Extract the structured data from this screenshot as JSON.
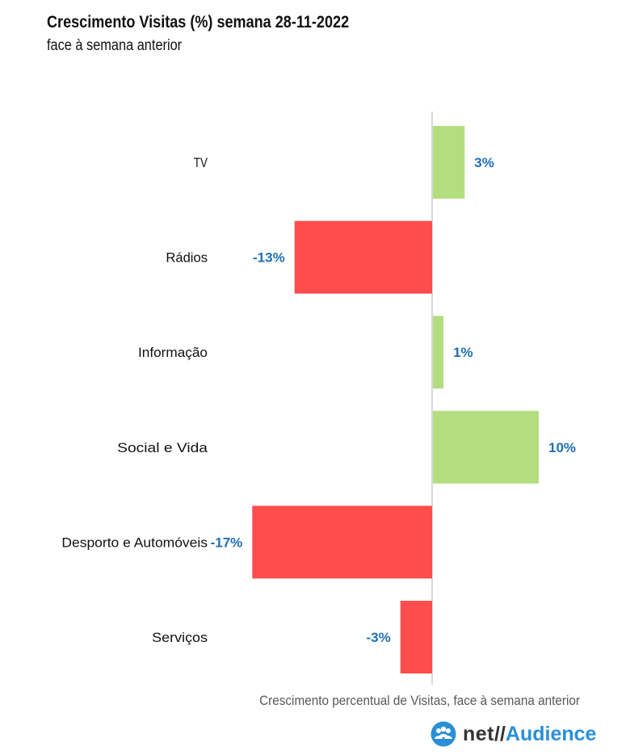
{
  "header": {
    "title": "Crescimento Visitas (%) semana 28-11-2022",
    "subtitle": "face à semana anterior"
  },
  "chart_data": {
    "type": "bar",
    "orientation": "horizontal",
    "categories": [
      "TV",
      "Rádios",
      "Informação",
      "Social e Vida",
      "Desporto e Automóveis",
      "Serviços"
    ],
    "values": [
      3,
      -13,
      1,
      10,
      -17,
      -3
    ],
    "value_labels": [
      "3%",
      "-13%",
      "1%",
      "10%",
      "-17%",
      "-3%"
    ],
    "xlabel": "Crescimento percentual de Visitas, face à semana anterior",
    "ylabel": "",
    "grid": false,
    "colors": {
      "positive": "#b3de80",
      "negative": "#ff4c4c",
      "label": "#1f6fb5",
      "axis": "#bfbfbf"
    }
  },
  "footer": {
    "note": "Crescimento percentual de Visitas, face à semana anterior",
    "logo_net": "net",
    "logo_slash": "//",
    "logo_audience": "Audience",
    "logo_icon": "people-group-icon"
  }
}
